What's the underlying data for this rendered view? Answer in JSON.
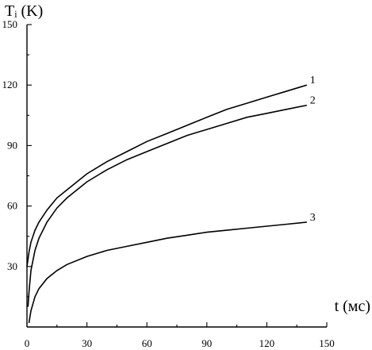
{
  "chart_data": {
    "type": "line",
    "ylabel": "Tᵢ (K)",
    "xlabel": "t (мс)",
    "xlim": [
      0,
      150
    ],
    "ylim": [
      0,
      150
    ],
    "x_ticks": [
      0,
      30,
      60,
      90,
      120,
      150
    ],
    "y_ticks": [
      30,
      60,
      90,
      120,
      150
    ],
    "grid": false,
    "series": [
      {
        "name": "1",
        "x": [
          0,
          1,
          2,
          4,
          6,
          10,
          15,
          20,
          30,
          40,
          50,
          60,
          70,
          80,
          90,
          100,
          110,
          120,
          130,
          140
        ],
        "y": [
          30,
          37,
          42,
          48,
          52,
          58,
          64,
          68,
          76,
          82,
          87,
          92,
          96,
          100,
          104,
          108,
          111,
          114,
          117,
          120
        ]
      },
      {
        "name": "2",
        "x": [
          0.5,
          1,
          2,
          4,
          6,
          10,
          15,
          20,
          30,
          40,
          50,
          60,
          70,
          80,
          90,
          100,
          110,
          120,
          130,
          140
        ],
        "y": [
          10,
          17,
          28,
          38,
          44,
          52,
          59,
          64,
          72,
          78,
          83,
          87,
          91,
          95,
          98,
          101,
          104,
          106,
          108,
          110
        ]
      },
      {
        "name": "3",
        "x": [
          1,
          2,
          4,
          6,
          10,
          15,
          20,
          30,
          40,
          50,
          60,
          70,
          80,
          90,
          100,
          110,
          120,
          130,
          140
        ],
        "y": [
          2,
          8,
          15,
          19,
          24,
          28,
          31,
          35,
          38,
          40,
          42,
          44,
          45.5,
          47,
          48,
          49,
          50,
          51,
          52
        ]
      }
    ]
  }
}
